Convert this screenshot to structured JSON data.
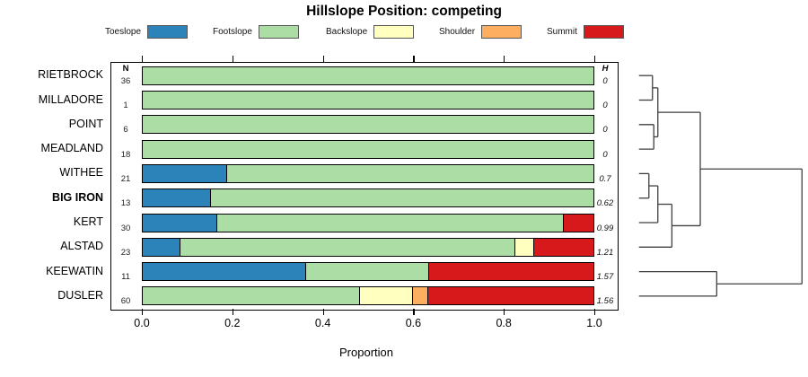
{
  "title": "Hillslope Position: competing",
  "legend": {
    "items": [
      {
        "label": "Toeslope",
        "color": "#2B83BA"
      },
      {
        "label": "Footslope",
        "color": "#ABDDA4"
      },
      {
        "label": "Backslope",
        "color": "#FFFFBF"
      },
      {
        "label": "Shoulder",
        "color": "#FDAE61"
      },
      {
        "label": "Summit",
        "color": "#D7191C"
      }
    ]
  },
  "columns": {
    "n_header": "N",
    "h_header": "H"
  },
  "x_axis": {
    "label": "Proportion",
    "ticks": [
      "0.0",
      "0.2",
      "0.4",
      "0.6",
      "0.8",
      "1.0"
    ],
    "range": [
      0,
      1
    ]
  },
  "chart_data": {
    "type": "bar",
    "stacked": true,
    "orientation": "horizontal",
    "title": "Hillslope Position: competing",
    "xlabel": "Proportion",
    "xlim": [
      0,
      1
    ],
    "grid": false,
    "categories": [
      "Toeslope",
      "Footslope",
      "Backslope",
      "Shoulder",
      "Summit"
    ],
    "colors": {
      "Toeslope": "#2B83BA",
      "Footslope": "#ABDDA4",
      "Backslope": "#FFFFBF",
      "Shoulder": "#FDAE61",
      "Summit": "#D7191C"
    },
    "rows": [
      {
        "label": "RIETBROCK",
        "n": 36,
        "shannon_h": "0",
        "bold": false,
        "proportions": [
          0,
          1.0,
          0,
          0,
          0
        ]
      },
      {
        "label": "MILLADORE",
        "n": 1,
        "shannon_h": "0",
        "bold": false,
        "proportions": [
          0,
          1.0,
          0,
          0,
          0
        ]
      },
      {
        "label": "POINT",
        "n": 6,
        "shannon_h": "0",
        "bold": false,
        "proportions": [
          0,
          1.0,
          0,
          0,
          0
        ]
      },
      {
        "label": "MEADLAND",
        "n": 18,
        "shannon_h": "0",
        "bold": false,
        "proportions": [
          0,
          1.0,
          0,
          0,
          0
        ]
      },
      {
        "label": "WITHEE",
        "n": 21,
        "shannon_h": "0.7",
        "bold": false,
        "proportions": [
          0.19,
          0.81,
          0,
          0,
          0
        ]
      },
      {
        "label": "BIG IRON",
        "n": 13,
        "shannon_h": "0.62",
        "bold": true,
        "proportions": [
          0.154,
          0.846,
          0,
          0,
          0
        ]
      },
      {
        "label": "KERT",
        "n": 30,
        "shannon_h": "0.99",
        "bold": false,
        "proportions": [
          0.167,
          0.766,
          0,
          0,
          0.067
        ]
      },
      {
        "label": "ALSTAD",
        "n": 23,
        "shannon_h": "1.21",
        "bold": false,
        "proportions": [
          0.087,
          0.739,
          0.043,
          0,
          0.131
        ]
      },
      {
        "label": "KEEWATIN",
        "n": 11,
        "shannon_h": "1.57",
        "bold": false,
        "proportions": [
          0.364,
          0.272,
          0,
          0,
          0.364
        ]
      },
      {
        "label": "DUSLER",
        "n": 60,
        "shannon_h": "1.56",
        "bold": false,
        "proportions": [
          0,
          0.483,
          0.117,
          0.033,
          0.367
        ]
      }
    ],
    "dendrogram": {
      "leaf_order": [
        "RIETBROCK",
        "MILLADORE",
        "POINT",
        "MEADLAND",
        "WITHEE",
        "BIG IRON",
        "KERT",
        "ALSTAD",
        "KEEWATIN",
        "DUSLER"
      ],
      "tree": [
        1.0,
        [
          0.376,
          [
            0.116,
            [
              0.083,
              0,
              1
            ],
            [
              0.091,
              2,
              3
            ]
          ],
          [
            0.202,
            [
              0.116,
              [
                0.061,
                4,
                5
              ],
              6
            ],
            7
          ]
        ],
        [
          0.477,
          8,
          9
        ]
      ]
    }
  }
}
